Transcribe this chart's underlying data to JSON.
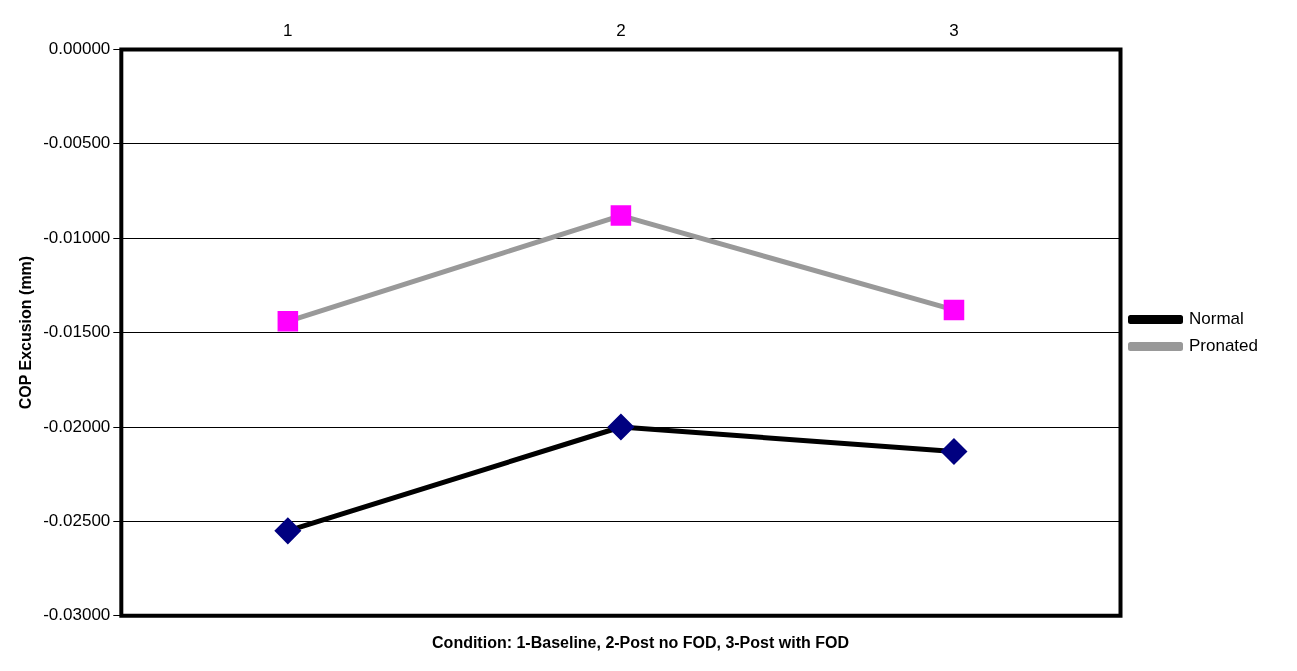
{
  "chart_data": {
    "type": "line",
    "xlabel": "Condition: 1-Baseline, 2-Post no FOD, 3-Post with FOD",
    "ylabel": "COP Excusion (mm)",
    "categories": [
      "1",
      "2",
      "3"
    ],
    "series": [
      {
        "name": "Normal",
        "color": "#000000",
        "colors": [
          "#000080",
          "#000080",
          "#000080"
        ],
        "marker": "diamond",
        "values": [
          -0.0255,
          -0.02,
          -0.0213
        ]
      },
      {
        "name": "Pronated",
        "color": "#999999",
        "colors": [
          "#ff00ff",
          "#ff00ff",
          "#ff00ff"
        ],
        "marker": "square",
        "values": [
          -0.0144,
          -0.0088,
          -0.0138
        ]
      }
    ],
    "ylim": [
      -0.03,
      0
    ],
    "yticks": [
      {
        "value": -0.03,
        "label": "-0.03000"
      },
      {
        "value": -0.025,
        "label": "-0.02500"
      },
      {
        "value": -0.02,
        "label": "-0.02000"
      },
      {
        "value": -0.015,
        "label": "-0.01500"
      },
      {
        "value": -0.01,
        "label": "-0.01000"
      },
      {
        "value": -0.005,
        "label": "-0.00500"
      },
      {
        "value": 0,
        "label": "0.00000"
      }
    ],
    "grid": "y",
    "legend": "right",
    "line_style": "solid"
  }
}
